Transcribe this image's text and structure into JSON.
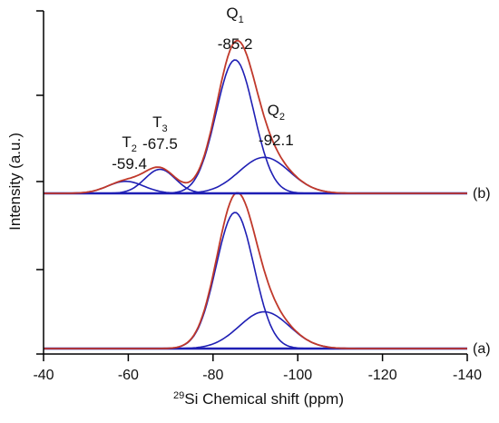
{
  "chart_data": {
    "type": "line",
    "xlabel_sup": "29",
    "xlabel": "Si Chemical shift (ppm)",
    "ylabel": "Intensity (a.u.)",
    "xlim": [
      -40,
      -140
    ],
    "x_ticks": [
      -40,
      -60,
      -80,
      -100,
      -120,
      -140
    ],
    "x_tick_labels": [
      "-40",
      "-60",
      "-80",
      "-100",
      "-120",
      "-140"
    ],
    "colors": {
      "experimental": "#000000",
      "fitted": "#c0392b",
      "components": "#1f1fb4"
    },
    "spectra": [
      {
        "label": "(a)",
        "components": [
          {
            "center": -85.2,
            "height": 1.0,
            "fwhm": 10.5
          },
          {
            "center": -92.1,
            "height": 0.27,
            "fwhm": 14.0
          }
        ],
        "experimental_extra": 0.04
      },
      {
        "label": "(b)",
        "components": [
          {
            "center": -59.4,
            "height": 0.09,
            "fwhm": 10.0
          },
          {
            "center": -67.5,
            "height": 0.18,
            "fwhm": 8.5
          },
          {
            "center": -85.2,
            "height": 1.0,
            "fwhm": 10.5
          },
          {
            "center": -92.1,
            "height": 0.27,
            "fwhm": 14.0
          }
        ],
        "experimental_extra": 0.04
      }
    ],
    "annotations": [
      {
        "name": "T",
        "sub": "2",
        "value": "-59.4",
        "x": -59.4
      },
      {
        "name": "T",
        "sub": "3",
        "value": "-67.5",
        "x": -67.5
      },
      {
        "name": "Q",
        "sub": "1",
        "value": "-85.2",
        "x": -85.2
      },
      {
        "name": "Q",
        "sub": "2",
        "value": "-92.1",
        "x": -92.1
      }
    ]
  }
}
